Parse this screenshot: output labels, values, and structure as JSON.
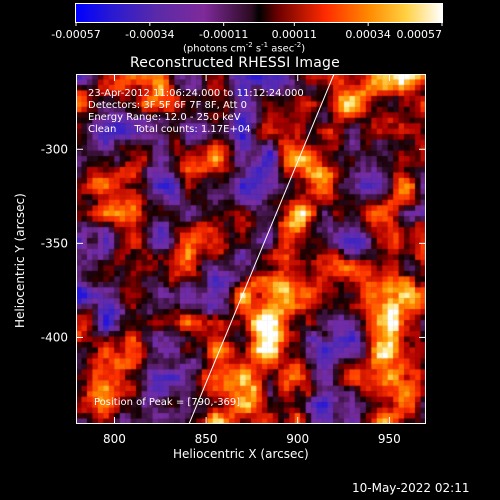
{
  "colorbar": {
    "tick_labels": [
      "-0.00057",
      "-0.00034",
      "-0.00011",
      "0.00011",
      "0.00034",
      "0.00057"
    ],
    "units": "(photons cm",
    "units_sup1": "-2",
    "units_mid1": " s",
    "units_sup2": "-1",
    "units_mid2": " asec",
    "units_sup3": "-2",
    "units_end": ")"
  },
  "title": "Reconstructed RHESSI Image",
  "info": {
    "line1": "23-Apr-2012 11:06:24.000 to 11:12:24.000",
    "line2": "Detectors: 3F 5F 6F 7F 8F, Att 0",
    "line3": "Energy Range: 12.0 - 25.0 keV",
    "line4_a": "Clean",
    "line4_b": "Total counts: 1.17E+04"
  },
  "peak": "Position of Peak = [790,-369]",
  "axes": {
    "xlabel": "Heliocentric X (arcsec)",
    "ylabel": "Heliocentric Y (arcsec)",
    "xticks": [
      "800",
      "850",
      "900",
      "950"
    ],
    "yticks": [
      "-300",
      "-350",
      "-400"
    ],
    "xrange": [
      779,
      970
    ],
    "yrange": [
      -446,
      -260
    ]
  },
  "timestamp": "10-May-2022 02:11",
  "colors": {
    "cmap": [
      "#0000ff",
      "#5a2aa8",
      "#7f2a9a",
      "#000000",
      "#8a0000",
      "#ff2a00",
      "#ff8a00",
      "#ffe060",
      "#ffffff"
    ]
  }
}
